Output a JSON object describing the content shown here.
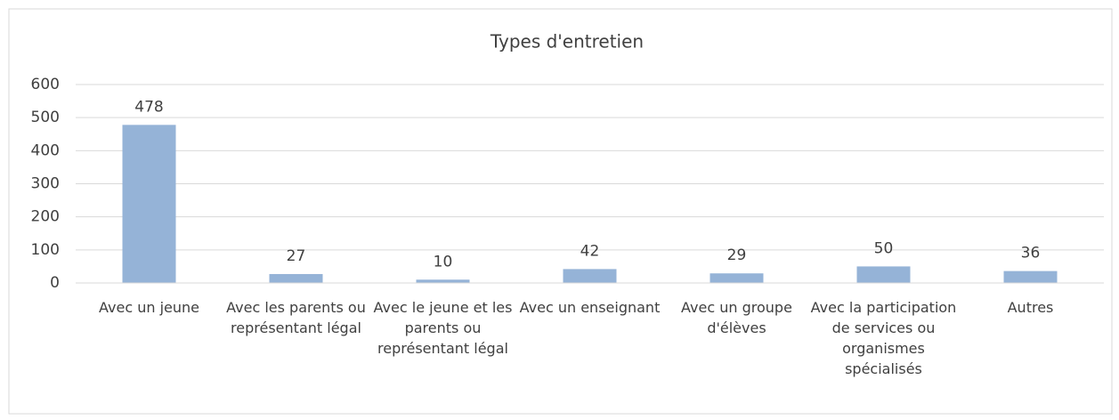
{
  "chart_data": {
    "type": "bar",
    "title": "Types d'entretien",
    "categories": [
      "Avec un jeune",
      "Avec les parents ou représentant légal",
      "Avec le jeune et les parents ou représentant légal",
      "Avec un enseignant",
      "Avec un groupe d'élèves",
      "Avec la participation de services ou organismes spécialisés",
      "Autres"
    ],
    "values": [
      478,
      27,
      10,
      42,
      29,
      50,
      36
    ],
    "color": "#95b3d7",
    "ylim": [
      0,
      600
    ],
    "yticks": [
      0,
      100,
      200,
      300,
      400,
      500,
      600
    ],
    "grid": true
  }
}
